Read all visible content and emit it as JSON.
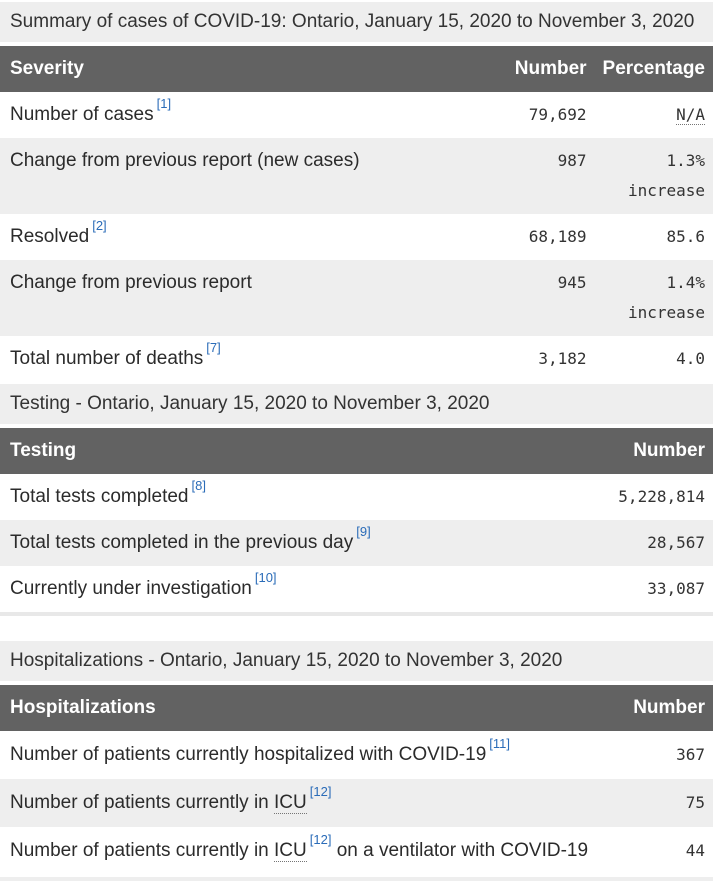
{
  "colors": {
    "header_bg": "#626262",
    "header_text": "#ffffff",
    "caption_bg": "#eeeeee",
    "stripe_bg": "#eeeeee",
    "link_blue": "#2b6cb8",
    "body_text": "#333333",
    "dotted_underline": "#757575"
  },
  "tables": [
    {
      "caption": "Summary of cases of COVID-19: Ontario, January 15, 2020 to November 3, 2020",
      "columns": [
        "Severity",
        "Number",
        "Percentage"
      ],
      "rows": [
        {
          "label_parts": [
            {
              "text": "Number of cases"
            },
            {
              "sup": "[1]"
            }
          ],
          "number": "79,692",
          "percentage": [
            {
              "abbr": "N/A"
            }
          ]
        },
        {
          "label_parts": [
            {
              "text": "Change from previous report (new cases)"
            }
          ],
          "number": "987",
          "percentage": [
            {
              "text": "1.3%"
            },
            {
              "line2": "increase"
            }
          ]
        },
        {
          "label_parts": [
            {
              "text": "Resolved"
            },
            {
              "sup": "[2]"
            }
          ],
          "number": "68,189",
          "percentage": [
            {
              "text": "85.6"
            }
          ]
        },
        {
          "label_parts": [
            {
              "text": "Change from previous report"
            }
          ],
          "number": "945",
          "percentage": [
            {
              "text": "1.4%"
            },
            {
              "line2": "increase"
            }
          ]
        },
        {
          "label_parts": [
            {
              "text": "Total number of deaths"
            },
            {
              "sup": "[7]"
            }
          ],
          "number": "3,182",
          "percentage": [
            {
              "text": "4.0"
            }
          ]
        }
      ]
    },
    {
      "caption": "Testing - Ontario, January 15, 2020 to November 3, 2020",
      "columns": [
        "Testing",
        "Number"
      ],
      "rows": [
        {
          "label_parts": [
            {
              "text": "Total tests completed"
            },
            {
              "sup": "[8]"
            }
          ],
          "number": "5,228,814"
        },
        {
          "label_parts": [
            {
              "text": "Total tests completed in the previous day"
            },
            {
              "sup": "[9]"
            }
          ],
          "number": "28,567"
        },
        {
          "label_parts": [
            {
              "text": "Currently under investigation"
            },
            {
              "sup": "[10]"
            }
          ],
          "number": "33,087"
        }
      ]
    },
    {
      "caption": "Hospitalizations - Ontario, January 15, 2020 to November 3, 2020",
      "columns": [
        "Hospitalizations",
        "Number"
      ],
      "rows": [
        {
          "label_parts": [
            {
              "text": "Number of patients currently hospitalized with COVID-19"
            },
            {
              "sup": "[11]"
            }
          ],
          "number": "367"
        },
        {
          "label_parts": [
            {
              "text": "Number of patients currently in "
            },
            {
              "abbr": "ICU"
            },
            {
              "sup": "[12]"
            }
          ],
          "number": "75"
        },
        {
          "label_parts": [
            {
              "text": "Number of patients currently in "
            },
            {
              "abbr": "ICU"
            },
            {
              "sup": "[12]"
            },
            {
              "text": " on a ventilator with COVID-19"
            }
          ],
          "number": "44"
        }
      ]
    }
  ]
}
